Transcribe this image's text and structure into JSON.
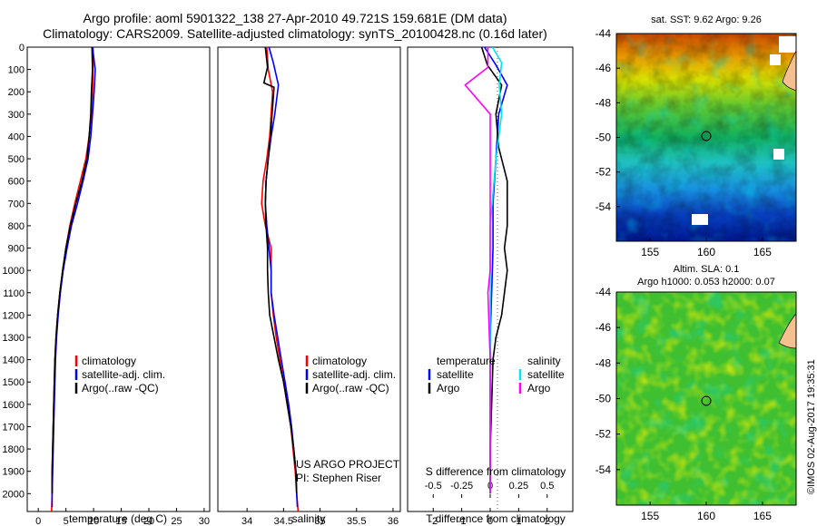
{
  "header": {
    "title_line1": "Argo profile: aoml 5901322_138 27-Apr-2010 49.721S 159.681E (DM data)",
    "title_line2": "Climatology: CARS2009. Satellite-adjusted climatology: synTS_20100428.nc (0.16d later)"
  },
  "colors": {
    "climatology": "#ff0000",
    "satellite": "#0000ff",
    "argo": "#000000",
    "sal_satellite": "#00e5ee",
    "sal_argo": "#ff00ff"
  },
  "chart_data": [
    {
      "type": "line",
      "id": "temperature",
      "xlabel": "temperature (deg C)",
      "ylabel": "",
      "xlim": [
        -2,
        31
      ],
      "ylim": [
        2080,
        0
      ],
      "xticks": [
        0,
        5,
        10,
        15,
        20,
        25,
        30
      ],
      "yticks": [
        0,
        100,
        200,
        300,
        400,
        500,
        600,
        700,
        800,
        900,
        1000,
        1100,
        1200,
        1300,
        1400,
        1500,
        1600,
        1700,
        1800,
        1900,
        2000
      ],
      "legend": [
        "climatology",
        "satellite-adj. clim.",
        "Argo(..raw -QC)"
      ],
      "series": [
        {
          "name": "climatology",
          "color": "#ff0000",
          "x": [
            9.9,
            9.9,
            9.8,
            9.6,
            9.2,
            8.6,
            7.6,
            6.6,
            5.7,
            5.0,
            4.4,
            3.9,
            3.5,
            3.2,
            3.0,
            2.9,
            2.8,
            2.7,
            2.6,
            2.5,
            2.5,
            2.4
          ],
          "y": [
            0,
            100,
            200,
            300,
            400,
            500,
            600,
            700,
            800,
            900,
            1000,
            1100,
            1200,
            1300,
            1400,
            1500,
            1600,
            1700,
            1800,
            1900,
            2000,
            2080
          ]
        },
        {
          "name": "satellite-adj. clim.",
          "color": "#0000ff",
          "x": [
            9.8,
            10.3,
            10.1,
            9.8,
            9.5,
            9.0,
            8.1,
            7.1,
            6.0,
            5.2,
            4.5,
            4.0,
            3.6,
            3.3,
            3.1,
            3.0,
            2.9,
            2.8,
            2.7,
            2.6,
            2.5,
            2.5
          ],
          "y": [
            0,
            100,
            200,
            300,
            400,
            500,
            600,
            700,
            800,
            900,
            1000,
            1100,
            1200,
            1300,
            1400,
            1500,
            1600,
            1700,
            1800,
            1900,
            2000,
            2060
          ]
        },
        {
          "name": "Argo(..raw -QC)",
          "color": "#000000",
          "x": [
            9.7,
            9.8,
            9.6,
            9.5,
            9.2,
            8.8,
            7.9,
            6.8,
            5.8,
            5.0,
            4.4,
            3.9,
            3.5,
            3.2,
            3.0,
            2.9,
            2.8,
            2.7,
            2.6,
            2.5,
            2.5
          ],
          "y": [
            0,
            100,
            200,
            300,
            400,
            500,
            600,
            700,
            800,
            900,
            1000,
            1100,
            1200,
            1300,
            1400,
            1500,
            1600,
            1700,
            1800,
            1900,
            2000
          ]
        }
      ]
    },
    {
      "type": "line",
      "id": "salinity",
      "xlabel": "salinity",
      "xlim": [
        33.6,
        36.1
      ],
      "ylim": [
        2080,
        0
      ],
      "xticks": [
        34,
        34.5,
        35,
        35.5,
        36
      ],
      "legend": [
        "climatology",
        "satellite-adj. clim.",
        "Argo(..raw -QC)"
      ],
      "annotation": [
        "US ARGO PROJECT",
        "PI: Stephen Riser"
      ],
      "series": [
        {
          "name": "climatology",
          "color": "#ff0000",
          "x": [
            34.27,
            34.29,
            34.35,
            34.33,
            34.31,
            34.27,
            34.22,
            34.2,
            34.25,
            34.33,
            34.33,
            34.33,
            34.36,
            34.4,
            34.45,
            34.5,
            34.55,
            34.6,
            34.63,
            34.66,
            34.68,
            34.7
          ],
          "y": [
            0,
            100,
            200,
            300,
            400,
            500,
            600,
            700,
            800,
            900,
            1000,
            1100,
            1200,
            1300,
            1400,
            1500,
            1600,
            1700,
            1800,
            1900,
            2000,
            2080
          ]
        },
        {
          "name": "satellite-adj. clim.",
          "color": "#0000ff",
          "x": [
            34.3,
            34.36,
            34.43,
            34.38,
            34.33,
            34.29,
            34.26,
            34.25,
            34.27,
            34.3,
            34.33,
            34.33,
            34.37,
            34.42,
            34.47,
            34.52,
            34.57,
            34.61,
            34.64,
            34.67,
            34.68,
            34.69
          ],
          "y": [
            0,
            70,
            170,
            300,
            400,
            500,
            600,
            700,
            800,
            900,
            1000,
            1100,
            1200,
            1300,
            1400,
            1500,
            1600,
            1700,
            1800,
            1900,
            2000,
            2060
          ]
        },
        {
          "name": "Argo(..raw -QC)",
          "color": "#000000",
          "x": [
            34.25,
            34.28,
            34.23,
            34.37,
            34.32,
            34.29,
            34.26,
            34.25,
            34.26,
            34.28,
            34.28,
            34.29,
            34.31,
            34.37,
            34.43,
            34.5,
            34.55,
            34.6,
            34.64,
            34.67,
            34.68
          ],
          "y": [
            0,
            90,
            160,
            180,
            400,
            500,
            600,
            700,
            800,
            900,
            1000,
            1100,
            1200,
            1300,
            1400,
            1500,
            1600,
            1700,
            1800,
            1900,
            2000
          ]
        }
      ]
    },
    {
      "type": "line",
      "id": "difference",
      "xlabel_bottom": "T difference from climatology",
      "xlabel_top": "S difference from climatology",
      "xlim_T": [
        -2.9,
        2.9
      ],
      "xticks_T": [
        -2,
        -1,
        0,
        1,
        2
      ],
      "xlim_S": [
        -0.725,
        0.725
      ],
      "xticks_S": [
        -0.5,
        -0.25,
        0,
        0.25,
        0.5
      ],
      "xtick_labels_S": [
        "-0.5",
        "-0.25",
        "0",
        "0.25",
        "0.5"
      ],
      "ylim": [
        2080,
        0
      ],
      "legend_temperature_title": "temperature",
      "legend_salinity_title": "salinity",
      "legend_temperature": [
        "satellite",
        "Argo"
      ],
      "legend_salinity": [
        "satellite",
        "Argo"
      ],
      "series": [
        {
          "name": "T satellite",
          "color": "#0000ff",
          "axis": "T",
          "x": [
            -0.2,
            0.2,
            0.6,
            0.3,
            0.2,
            0.1,
            0.1,
            0.05,
            0.0,
            0.0,
            0.0,
            0.0,
            0.0
          ],
          "y": [
            0,
            80,
            170,
            300,
            500,
            700,
            900,
            1100,
            1300,
            1500,
            1700,
            1900,
            2000
          ]
        },
        {
          "name": "T Argo",
          "color": "#000000",
          "axis": "T",
          "x": [
            -0.3,
            -0.1,
            0.4,
            0.2,
            0.3,
            0.5,
            0.6,
            0.6,
            0.6,
            0.5,
            0.6,
            0.5,
            0.4,
            0.2,
            0.1,
            0.05,
            0.0,
            0.0
          ],
          "y": [
            0,
            80,
            170,
            300,
            450,
            550,
            600,
            700,
            800,
            900,
            1000,
            1100,
            1200,
            1300,
            1400,
            1600,
            1800,
            2000
          ]
        },
        {
          "name": "S satellite",
          "color": "#00e5ee",
          "axis": "S",
          "x": [
            0.02,
            0.1,
            0.08,
            0.1,
            0.05,
            0.0,
            0.0,
            0.0,
            0.0,
            0.0,
            0.0
          ],
          "y": [
            0,
            70,
            170,
            300,
            500,
            800,
            1100,
            1400,
            1600,
            1800,
            2000
          ]
        },
        {
          "name": "S Argo",
          "color": "#ff00ff",
          "axis": "S",
          "x": [
            -0.02,
            -0.02,
            -0.22,
            0.0,
            0.0,
            0.0,
            0.0,
            0.0,
            -0.02,
            0.0,
            0.0,
            0.0,
            0.0
          ],
          "y": [
            0,
            90,
            170,
            300,
            500,
            700,
            900,
            1000,
            1100,
            1400,
            1600,
            1800,
            2000
          ]
        }
      ]
    },
    {
      "type": "heatmap",
      "id": "sst-map",
      "title": "sat. SST: 9.62  Argo: 9.26",
      "xticks": [
        155,
        160,
        165
      ],
      "yticks": [
        -44,
        -46,
        -48,
        -50,
        -52,
        -54
      ],
      "xlim": [
        152,
        168
      ],
      "ylim": [
        -56,
        -44
      ]
    },
    {
      "type": "heatmap",
      "id": "sla-map",
      "title_line1": "Altim. SLA: 0.1",
      "title_line2": "Argo h1000: 0.053 h2000: 0.07",
      "xticks": [
        155,
        160,
        165
      ],
      "yticks": [
        -44,
        -46,
        -48,
        -50,
        -52,
        -54
      ],
      "xlim": [
        152,
        168
      ],
      "ylim": [
        -56,
        -44
      ]
    }
  ],
  "footer": {
    "stamp": "©IMOS 02-Aug-2017 19:35:31"
  }
}
